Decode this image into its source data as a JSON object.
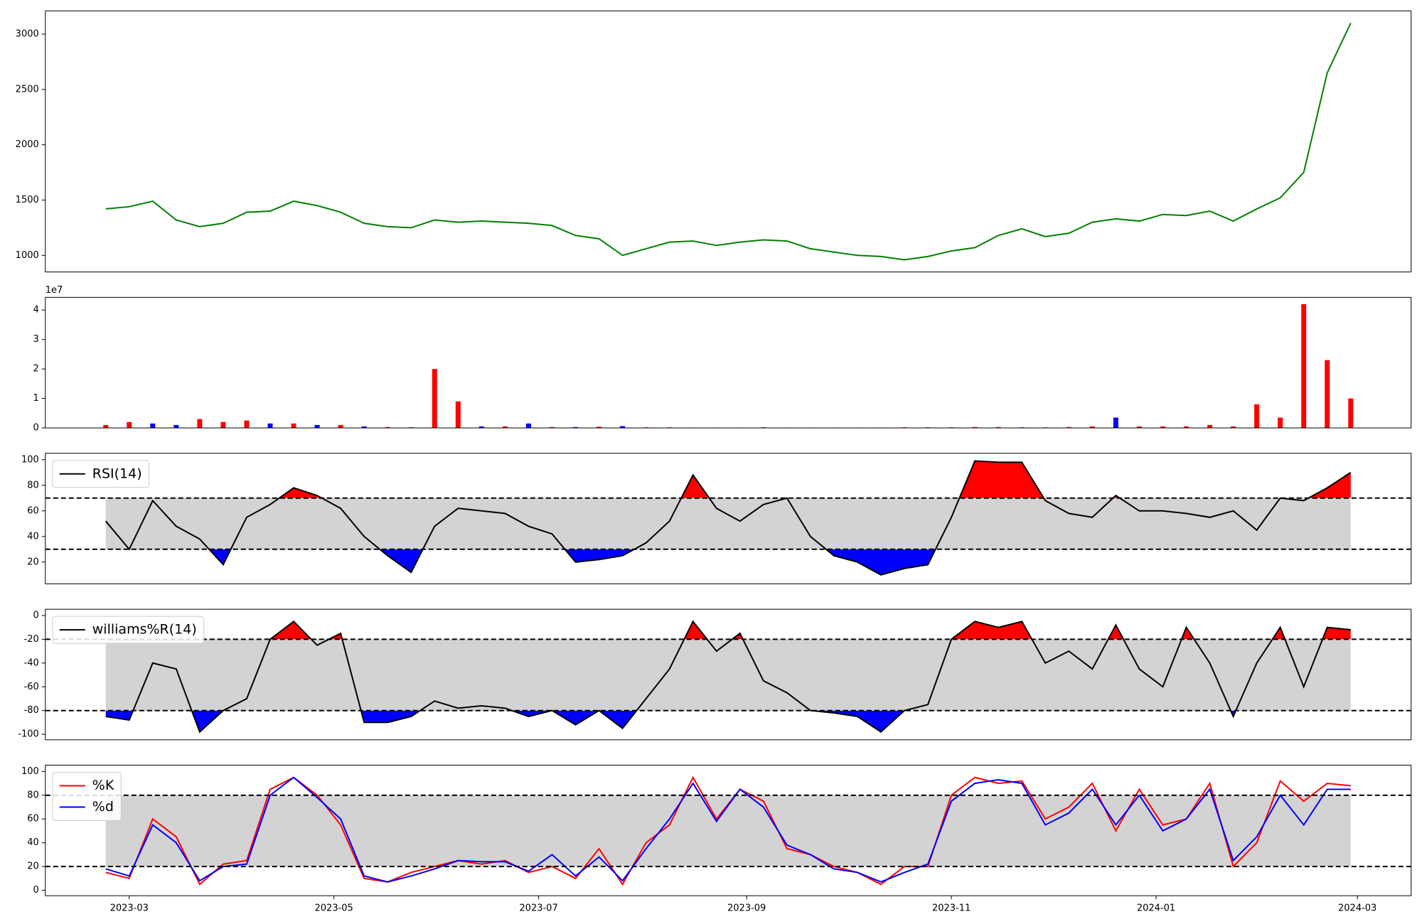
{
  "chart_data": [
    {
      "type": "line",
      "xlim": [
        "2023-02-04",
        "2024-03-17"
      ],
      "ylim": [
        850,
        3210
      ],
      "yticks": [
        1000,
        1500,
        2000,
        2500,
        3000
      ],
      "x": [
        "2023-02-22",
        "2023-03-01",
        "2023-03-08",
        "2023-03-15",
        "2023-03-22",
        "2023-03-29",
        "2023-04-05",
        "2023-04-12",
        "2023-04-19",
        "2023-04-26",
        "2023-05-03",
        "2023-05-10",
        "2023-05-17",
        "2023-05-24",
        "2023-05-31",
        "2023-06-07",
        "2023-06-14",
        "2023-06-21",
        "2023-06-28",
        "2023-07-05",
        "2023-07-12",
        "2023-07-19",
        "2023-07-26",
        "2023-08-02",
        "2023-08-09",
        "2023-08-16",
        "2023-08-23",
        "2023-08-30",
        "2023-09-06",
        "2023-09-13",
        "2023-09-20",
        "2023-09-27",
        "2023-10-04",
        "2023-10-11",
        "2023-10-18",
        "2023-10-25",
        "2023-11-01",
        "2023-11-08",
        "2023-11-15",
        "2023-11-22",
        "2023-11-29",
        "2023-12-06",
        "2023-12-13",
        "2023-12-20",
        "2023-12-27",
        "2024-01-03",
        "2024-01-10",
        "2024-01-17",
        "2024-01-24",
        "2024-01-31",
        "2024-02-07",
        "2024-02-14",
        "2024-02-21",
        "2024-02-28"
      ],
      "series": [
        {
          "color": "#008000",
          "values": [
            1420,
            1440,
            1490,
            1320,
            1260,
            1290,
            1390,
            1400,
            1490,
            1450,
            1390,
            1290,
            1260,
            1250,
            1320,
            1300,
            1310,
            1300,
            1290,
            1270,
            1180,
            1150,
            1000,
            1060,
            1120,
            1130,
            1090,
            1120,
            1140,
            1130,
            1060,
            1030,
            1000,
            990,
            960,
            990,
            1040,
            1070,
            1180,
            1240,
            1170,
            1200,
            1300,
            1330,
            1310,
            1370,
            1360,
            1400,
            1310,
            1420,
            1520,
            1750,
            2650,
            3100
          ]
        }
      ]
    },
    {
      "type": "bar",
      "xlim": [
        "2023-02-04",
        "2024-03-17"
      ],
      "ylim": [
        0,
        4.43
      ],
      "yticks": [
        0,
        1,
        2,
        3,
        4
      ],
      "y_offset_label": "1e7",
      "x": [
        "2023-02-22",
        "2023-03-01",
        "2023-03-08",
        "2023-03-15",
        "2023-03-22",
        "2023-03-29",
        "2023-04-05",
        "2023-04-12",
        "2023-04-19",
        "2023-04-26",
        "2023-05-03",
        "2023-05-10",
        "2023-05-17",
        "2023-05-24",
        "2023-05-31",
        "2023-06-07",
        "2023-06-14",
        "2023-06-21",
        "2023-06-28",
        "2023-07-05",
        "2023-07-12",
        "2023-07-19",
        "2023-07-26",
        "2023-08-02",
        "2023-08-09",
        "2023-08-16",
        "2023-08-23",
        "2023-08-30",
        "2023-09-06",
        "2023-09-13",
        "2023-09-20",
        "2023-09-27",
        "2023-10-04",
        "2023-10-11",
        "2023-10-18",
        "2023-10-25",
        "2023-11-01",
        "2023-11-08",
        "2023-11-15",
        "2023-11-22",
        "2023-11-29",
        "2023-12-06",
        "2023-12-13",
        "2023-12-20",
        "2023-12-27",
        "2024-01-03",
        "2024-01-10",
        "2024-01-17",
        "2024-01-24",
        "2024-01-31",
        "2024-02-07",
        "2024-02-14",
        "2024-02-21",
        "2024-02-28"
      ],
      "values": [
        0.1,
        0.2,
        0.15,
        0.1,
        0.3,
        0.2,
        0.25,
        0.15,
        0.15,
        0.1,
        0.1,
        0.05,
        0.03,
        0.02,
        2.0,
        0.9,
        0.05,
        0.05,
        0.15,
        0.03,
        0.03,
        0.04,
        0.06,
        0.02,
        0.02,
        0.01,
        0.01,
        0.01,
        0.02,
        0.01,
        0.01,
        0.01,
        0.01,
        0.01,
        0.02,
        0.02,
        0.02,
        0.03,
        0.03,
        0.02,
        0.02,
        0.03,
        0.05,
        0.35,
        0.05,
        0.05,
        0.05,
        0.1,
        0.05,
        0.8,
        0.35,
        4.2,
        2.3,
        1.0
      ],
      "colors": [
        "red",
        "red",
        "blue",
        "blue",
        "red",
        "red",
        "red",
        "blue",
        "red",
        "blue",
        "red",
        "blue",
        "red",
        "blue",
        "red",
        "red",
        "blue",
        "red",
        "blue",
        "red",
        "blue",
        "red",
        "blue",
        "red",
        "red",
        "blue",
        "red",
        "red",
        "blue",
        "red",
        "red",
        "red",
        "blue",
        "red",
        "red",
        "red",
        "red",
        "red",
        "red",
        "blue",
        "red",
        "red",
        "red",
        "blue",
        "red",
        "red",
        "red",
        "red",
        "red",
        "red",
        "red",
        "red",
        "red",
        "red"
      ]
    },
    {
      "type": "line",
      "xlim": [
        "2023-02-04",
        "2024-03-17"
      ],
      "ylim": [
        3,
        105
      ],
      "yticks": [
        20,
        40,
        60,
        80,
        100
      ],
      "thresholds": [
        30,
        70
      ],
      "band_color": "#d3d3d3",
      "above_color": "red",
      "below_color": "blue",
      "legend": "upper left",
      "x": [
        "2023-02-22",
        "2023-03-01",
        "2023-03-08",
        "2023-03-15",
        "2023-03-22",
        "2023-03-29",
        "2023-04-05",
        "2023-04-12",
        "2023-04-19",
        "2023-04-26",
        "2023-05-03",
        "2023-05-10",
        "2023-05-17",
        "2023-05-24",
        "2023-05-31",
        "2023-06-07",
        "2023-06-14",
        "2023-06-21",
        "2023-06-28",
        "2023-07-05",
        "2023-07-12",
        "2023-07-19",
        "2023-07-26",
        "2023-08-02",
        "2023-08-09",
        "2023-08-16",
        "2023-08-23",
        "2023-08-30",
        "2023-09-06",
        "2023-09-13",
        "2023-09-20",
        "2023-09-27",
        "2023-10-04",
        "2023-10-11",
        "2023-10-18",
        "2023-10-25",
        "2023-11-01",
        "2023-11-08",
        "2023-11-15",
        "2023-11-22",
        "2023-11-29",
        "2023-12-06",
        "2023-12-13",
        "2023-12-20",
        "2023-12-27",
        "2024-01-03",
        "2024-01-10",
        "2024-01-17",
        "2024-01-24",
        "2024-01-31",
        "2024-02-07",
        "2024-02-14",
        "2024-02-21",
        "2024-02-28"
      ],
      "series": [
        {
          "name": "RSI(14)",
          "color": "black",
          "values": [
            52,
            30,
            68,
            48,
            38,
            18,
            55,
            65,
            78,
            72,
            62,
            40,
            25,
            12,
            48,
            62,
            60,
            58,
            48,
            42,
            20,
            22,
            25,
            35,
            52,
            88,
            62,
            52,
            65,
            70,
            40,
            25,
            20,
            10,
            15,
            18,
            55,
            99,
            98,
            98,
            68,
            58,
            55,
            72,
            60,
            60,
            58,
            55,
            60,
            45,
            70,
            68,
            78,
            90
          ]
        }
      ]
    },
    {
      "type": "line",
      "xlim": [
        "2023-02-04",
        "2024-03-17"
      ],
      "ylim": [
        -104.6,
        5.3
      ],
      "yticks": [
        -100,
        -80,
        -60,
        -40,
        -20,
        0
      ],
      "thresholds": [
        -80,
        -20
      ],
      "band_color": "#d3d3d3",
      "above_color": "red",
      "below_color": "blue",
      "legend": "upper left",
      "x": [
        "2023-02-22",
        "2023-03-01",
        "2023-03-08",
        "2023-03-15",
        "2023-03-22",
        "2023-03-29",
        "2023-04-05",
        "2023-04-12",
        "2023-04-19",
        "2023-04-26",
        "2023-05-03",
        "2023-05-10",
        "2023-05-17",
        "2023-05-24",
        "2023-05-31",
        "2023-06-07",
        "2023-06-14",
        "2023-06-21",
        "2023-06-28",
        "2023-07-05",
        "2023-07-12",
        "2023-07-19",
        "2023-07-26",
        "2023-08-02",
        "2023-08-09",
        "2023-08-16",
        "2023-08-23",
        "2023-08-30",
        "2023-09-06",
        "2023-09-13",
        "2023-09-20",
        "2023-09-27",
        "2023-10-04",
        "2023-10-11",
        "2023-10-18",
        "2023-10-25",
        "2023-11-01",
        "2023-11-08",
        "2023-11-15",
        "2023-11-22",
        "2023-11-29",
        "2023-12-06",
        "2023-12-13",
        "2023-12-20",
        "2023-12-27",
        "2024-01-03",
        "2024-01-10",
        "2024-01-17",
        "2024-01-24",
        "2024-01-31",
        "2024-02-07",
        "2024-02-14",
        "2024-02-21",
        "2024-02-28"
      ],
      "series": [
        {
          "name": "williams%R(14)",
          "color": "black",
          "values": [
            -85,
            -88,
            -40,
            -45,
            -98,
            -80,
            -70,
            -20,
            -5,
            -25,
            -15,
            -90,
            -90,
            -85,
            -72,
            -78,
            -76,
            -78,
            -85,
            -80,
            -92,
            -80,
            -95,
            -70,
            -45,
            -5,
            -30,
            -15,
            -55,
            -65,
            -80,
            -82,
            -85,
            -98,
            -80,
            -75,
            -20,
            -5,
            -10,
            -5,
            -40,
            -30,
            -45,
            -8,
            -45,
            -60,
            -10,
            -40,
            -85,
            -40,
            -10,
            -60,
            -10,
            -12
          ]
        }
      ]
    },
    {
      "type": "line",
      "xlim": [
        "2023-02-04",
        "2024-03-17"
      ],
      "ylim": [
        -4.6,
        105.3
      ],
      "yticks": [
        0,
        20,
        40,
        60,
        80,
        100
      ],
      "thresholds": [
        20,
        80
      ],
      "band_color": "#d3d3d3",
      "legend": "upper left",
      "xticks": [
        {
          "value": "2023-03-01",
          "label": "2023-03"
        },
        {
          "value": "2023-05-01",
          "label": "2023-05"
        },
        {
          "value": "2023-07-01",
          "label": "2023-07"
        },
        {
          "value": "2023-09-01",
          "label": "2023-09"
        },
        {
          "value": "2023-11-01",
          "label": "2023-11"
        },
        {
          "value": "2024-01-01",
          "label": "2024-01"
        },
        {
          "value": "2024-03-01",
          "label": "2024-03"
        }
      ],
      "x": [
        "2023-02-22",
        "2023-03-01",
        "2023-03-08",
        "2023-03-15",
        "2023-03-22",
        "2023-03-29",
        "2023-04-05",
        "2023-04-12",
        "2023-04-19",
        "2023-04-26",
        "2023-05-03",
        "2023-05-10",
        "2023-05-17",
        "2023-05-24",
        "2023-05-31",
        "2023-06-07",
        "2023-06-14",
        "2023-06-21",
        "2023-06-28",
        "2023-07-05",
        "2023-07-12",
        "2023-07-19",
        "2023-07-26",
        "2023-08-02",
        "2023-08-09",
        "2023-08-16",
        "2023-08-23",
        "2023-08-30",
        "2023-09-06",
        "2023-09-13",
        "2023-09-20",
        "2023-09-27",
        "2023-10-04",
        "2023-10-11",
        "2023-10-18",
        "2023-10-25",
        "2023-11-01",
        "2023-11-08",
        "2023-11-15",
        "2023-11-22",
        "2023-11-29",
        "2023-12-06",
        "2023-12-13",
        "2023-12-20",
        "2023-12-27",
        "2024-01-03",
        "2024-01-10",
        "2024-01-17",
        "2024-01-24",
        "2024-01-31",
        "2024-02-07",
        "2024-02-14",
        "2024-02-21",
        "2024-02-28"
      ],
      "series": [
        {
          "name": "%K",
          "color": "red",
          "values": [
            15,
            10,
            60,
            45,
            5,
            22,
            25,
            85,
            95,
            80,
            55,
            10,
            7,
            15,
            20,
            25,
            22,
            25,
            15,
            20,
            10,
            35,
            5,
            40,
            55,
            95,
            60,
            85,
            75,
            35,
            30,
            20,
            15,
            5,
            20,
            20,
            80,
            95,
            90,
            92,
            60,
            70,
            90,
            50,
            85,
            55,
            60,
            90,
            20,
            40,
            92,
            75,
            90,
            88
          ]
        },
        {
          "name": "%d",
          "color": "blue",
          "values": [
            18,
            12,
            55,
            40,
            8,
            20,
            22,
            80,
            95,
            78,
            60,
            12,
            7,
            12,
            18,
            25,
            24,
            24,
            16,
            30,
            12,
            28,
            8,
            35,
            60,
            90,
            58,
            85,
            70,
            38,
            30,
            18,
            15,
            7,
            15,
            22,
            75,
            90,
            93,
            90,
            55,
            65,
            85,
            55,
            80,
            50,
            60,
            85,
            25,
            45,
            80,
            55,
            85,
            85
          ]
        }
      ]
    }
  ]
}
